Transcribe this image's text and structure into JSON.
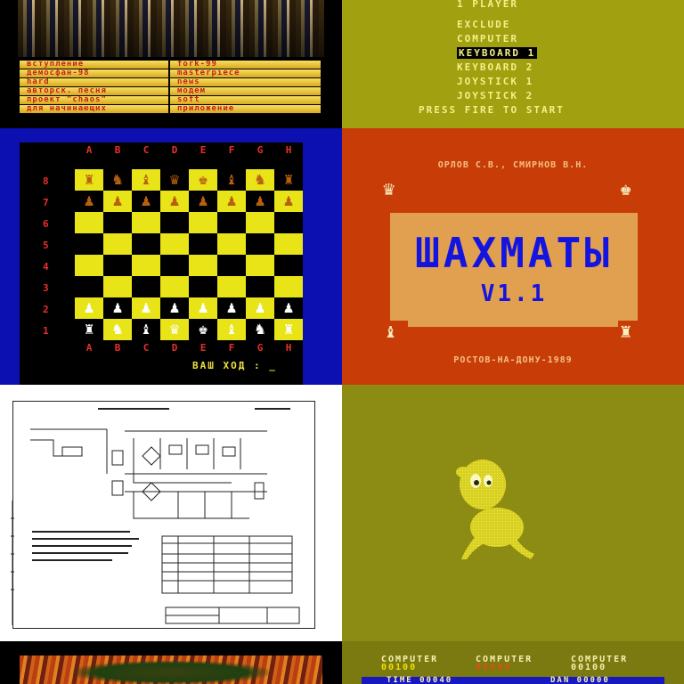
{
  "tiles": {
    "menu_screen": {
      "left_items": [
        "вступление",
        "демосфан-98",
        "hard",
        "авторск. песня",
        "проект \"chaos\"",
        "для начинающих"
      ],
      "right_items": [
        "fork-99",
        "masterpiece",
        "news",
        "модем",
        "soft",
        "приложение"
      ]
    },
    "options_screen": {
      "title": "1 PLAYER",
      "items": [
        "EXCLUDE",
        "COMPUTER",
        "KEYBOARD 1",
        "KEYBOARD 2",
        "JOYSTICK 1",
        "JOYSTICK 2"
      ],
      "selected": "KEYBOARD 1",
      "prompt": "PRESS FIRE TO START"
    },
    "chess_board": {
      "files": [
        "A",
        "B",
        "C",
        "D",
        "E",
        "F",
        "G",
        "H"
      ],
      "ranks": [
        "8",
        "7",
        "6",
        "5",
        "4",
        "3",
        "2",
        "1"
      ],
      "black_back": [
        "♜",
        "♞",
        "♝",
        "♛",
        "♚",
        "♝",
        "♞",
        "♜"
      ],
      "black_pawns": [
        "♟",
        "♟",
        "♟",
        "♟",
        "♟",
        "♟",
        "♟",
        "♟"
      ],
      "white_pawns": [
        "♟",
        "♟",
        "♟",
        "♟",
        "♟",
        "♟",
        "♟",
        "♟"
      ],
      "white_back": [
        "♜",
        "♞",
        "♝",
        "♛",
        "♚",
        "♝",
        "♞",
        "♜"
      ],
      "prompt": "ВАШ ХОД : _"
    },
    "title_screen": {
      "authors": "ОРЛОВ С.В.,  СМИРНОВ В.Н.",
      "title": "ШАХМАТЫ",
      "version": "V1.1",
      "city_year": "РОСТОВ-НА-ДОНУ-1989",
      "colors": {
        "background": "#c83c08",
        "panel": "#e0a050",
        "title": "#1414e0"
      }
    },
    "schematic": {},
    "character_screen": {},
    "lava_screen": {},
    "score_screen": {
      "players": [
        {
          "label": "COMPUTER",
          "score": "00100"
        },
        {
          "label": "COMPUTER",
          "score": "00000"
        },
        {
          "label": "COMPUTER",
          "score": "00100"
        }
      ],
      "bar_left": "TIME 00040",
      "bar_right": "DAN 00000"
    }
  }
}
